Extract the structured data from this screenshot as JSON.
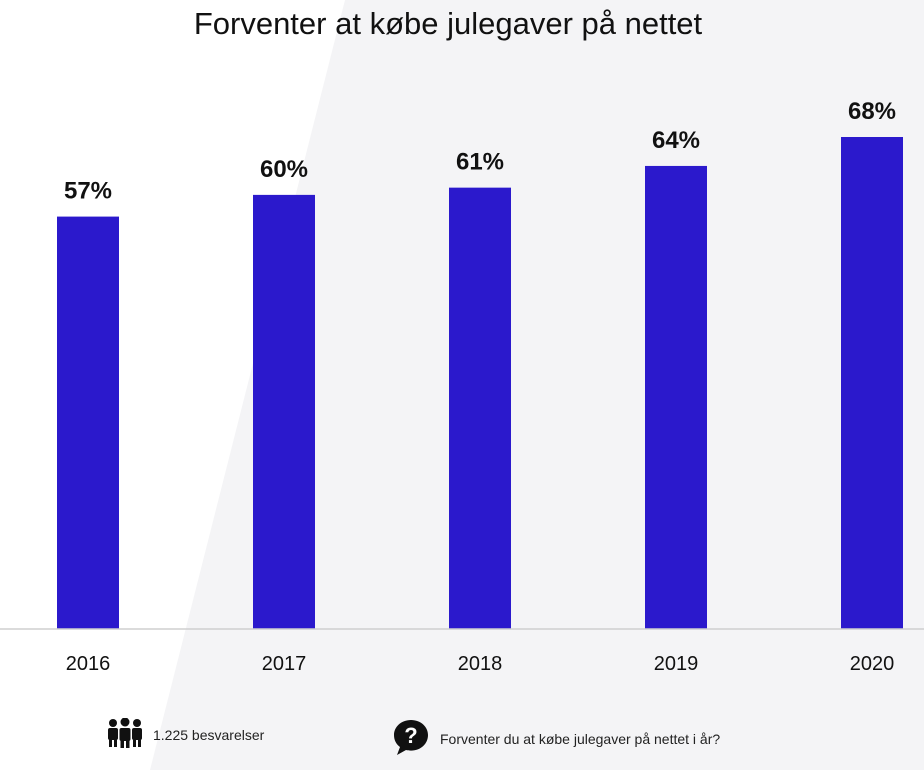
{
  "chart_data": {
    "type": "bar",
    "title": "Forventer at købe julegaver på nettet",
    "categories": [
      "2016",
      "2017",
      "2018",
      "2019",
      "2020"
    ],
    "values": [
      57,
      60,
      61,
      64,
      68
    ],
    "value_labels": [
      "57%",
      "60%",
      "61%",
      "64%",
      "68%"
    ],
    "unit": "%",
    "xlabel": "",
    "ylabel": "",
    "ylim": [
      0,
      68
    ],
    "grid": false,
    "bar_color": "#2b19cc"
  },
  "footer": {
    "respondents_icon": "people-icon",
    "respondents": "1.225 besvarelser",
    "question_icon": "question-bubble-icon",
    "question": "Forventer du at købe julegaver på nettet i år?"
  }
}
